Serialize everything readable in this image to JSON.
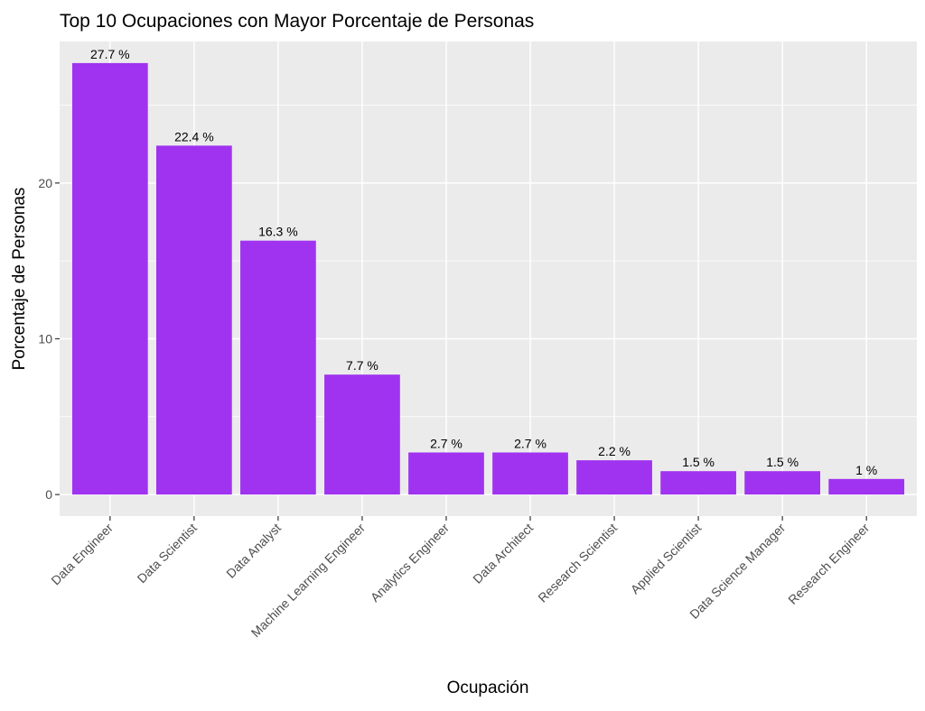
{
  "chart_data": {
    "type": "bar",
    "title": "Top 10 Ocupaciones con Mayor Porcentaje de Personas",
    "xlabel": "Ocupación",
    "ylabel": "Porcentaje de Personas",
    "categories": [
      "Data Engineer",
      "Data Scientist",
      "Data Analyst",
      "Machine Learning Engineer",
      "Analytics Engineer",
      "Data Architect",
      "Research Scientist",
      "Applied Scientist",
      "Data Science Manager",
      "Research Engineer"
    ],
    "values": [
      27.7,
      22.4,
      16.3,
      7.7,
      2.7,
      2.7,
      2.2,
      1.5,
      1.5,
      1.0
    ],
    "data_labels": [
      "27.7 %",
      "22.4 %",
      "16.3 %",
      "7.7 %",
      "2.7 %",
      "2.7 %",
      "2.2 %",
      "1.5 %",
      "1.5 %",
      "1 %"
    ],
    "yticks": [
      0,
      10,
      20
    ],
    "ytick_labels": [
      "0",
      "10",
      "20"
    ],
    "ylim": [
      -1.385,
      29.085
    ],
    "grid": true,
    "bar_color": "#A033F0",
    "panel_color": "#EBEBEB"
  }
}
